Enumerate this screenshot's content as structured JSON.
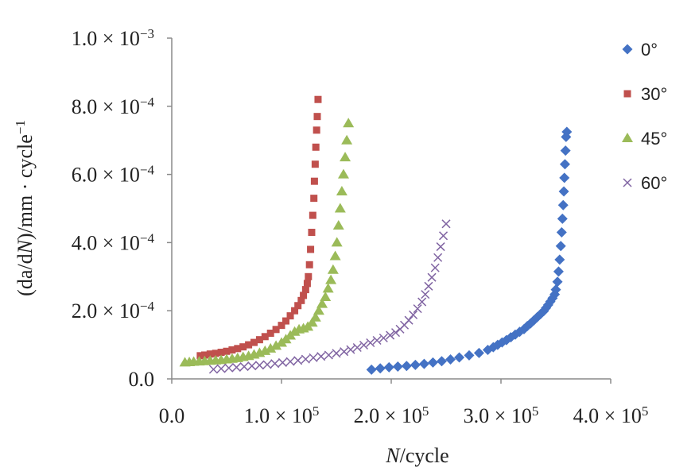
{
  "chart_data": {
    "type": "scatter",
    "xlabel": {
      "italic": "N",
      "rest": "/cycle"
    },
    "ylabel": {
      "prefix": "(da/d",
      "italic": "N",
      "suffix": ")/mm · cycle",
      "sup": "−1"
    },
    "xlim": [
      0,
      400000
    ],
    "ylim": [
      0,
      0.001
    ],
    "x_ticks": [
      {
        "value": 0,
        "mant": "0.0",
        "exp": ""
      },
      {
        "value": 100000,
        "mant": "1.0",
        "exp": "5"
      },
      {
        "value": 200000,
        "mant": "2.0",
        "exp": "5"
      },
      {
        "value": 300000,
        "mant": "3.0",
        "exp": "5"
      },
      {
        "value": 400000,
        "mant": "4.0",
        "exp": "5"
      }
    ],
    "y_ticks": [
      {
        "value": 0,
        "mant": "0.0",
        "exp": ""
      },
      {
        "value": 0.0002,
        "mant": "2.0",
        "exp": "−4"
      },
      {
        "value": 0.0004,
        "mant": "4.0",
        "exp": "−4"
      },
      {
        "value": 0.0006,
        "mant": "6.0",
        "exp": "−4"
      },
      {
        "value": 0.0008,
        "mant": "8.0",
        "exp": "−4"
      },
      {
        "value": 0.001,
        "mant": "1.0",
        "exp": "−3"
      }
    ],
    "grid": false,
    "legend_position": "top-right",
    "series": [
      {
        "name": "0°",
        "marker": "diamond",
        "color": "#4472c4",
        "points": [
          [
            182000,
            2.7e-05
          ],
          [
            190000,
            3.1e-05
          ],
          [
            198000,
            3.4e-05
          ],
          [
            206000,
            3.6e-05
          ],
          [
            214000,
            3.8e-05
          ],
          [
            222000,
            4.1e-05
          ],
          [
            230000,
            4.4e-05
          ],
          [
            238000,
            4.8e-05
          ],
          [
            246000,
            5.2e-05
          ],
          [
            254000,
            5.7e-05
          ],
          [
            262000,
            6.3e-05
          ],
          [
            271000,
            6.9e-05
          ],
          [
            280000,
            7.6e-05
          ],
          [
            288000,
            8.5e-05
          ],
          [
            293000,
            9.3e-05
          ],
          [
            297000,
            0.0001
          ],
          [
            301000,
            0.000107
          ],
          [
            305000,
            0.000114
          ],
          [
            309000,
            0.000122
          ],
          [
            313000,
            0.00013
          ],
          [
            317000,
            0.000138
          ],
          [
            321000,
            0.000146
          ],
          [
            324000,
            0.000155
          ],
          [
            327000,
            0.000163
          ],
          [
            330000,
            0.000172
          ],
          [
            333000,
            0.000181
          ],
          [
            336000,
            0.00019
          ],
          [
            339000,
            0.000199
          ],
          [
            341000,
            0.000208
          ],
          [
            343000,
            0.000217
          ],
          [
            345000,
            0.000227
          ],
          [
            347000,
            0.000237
          ],
          [
            349000,
            0.000248
          ],
          [
            350000,
            0.000262
          ],
          [
            351500,
            0.000285
          ],
          [
            352500,
            0.000315
          ],
          [
            353500,
            0.00035
          ],
          [
            354500,
            0.00039
          ],
          [
            355300,
            0.00043
          ],
          [
            356000,
            0.00047
          ],
          [
            356700,
            0.00051
          ],
          [
            357300,
            0.00055
          ],
          [
            357800,
            0.00059
          ],
          [
            358300,
            0.00063
          ],
          [
            358800,
            0.00067
          ],
          [
            359300,
            0.00071
          ],
          [
            360000,
            0.000725
          ]
        ]
      },
      {
        "name": "30°",
        "marker": "square",
        "color": "#c0504d",
        "points": [
          [
            26000,
            6.8e-05
          ],
          [
            30000,
            7e-05
          ],
          [
            35000,
            7.3e-05
          ],
          [
            40000,
            7.5e-05
          ],
          [
            45000,
            7.8e-05
          ],
          [
            50000,
            8.1e-05
          ],
          [
            55000,
            8.5e-05
          ],
          [
            60000,
            8.9e-05
          ],
          [
            65000,
            9.4e-05
          ],
          [
            70000,
            0.0001
          ],
          [
            75000,
            0.000107
          ],
          [
            80000,
            0.000115
          ],
          [
            85000,
            0.000124
          ],
          [
            90000,
            0.000134
          ],
          [
            95000,
            0.000145
          ],
          [
            100000,
            0.000157
          ],
          [
            104000,
            0.00017
          ],
          [
            108000,
            0.000185
          ],
          [
            112000,
            0.0002
          ],
          [
            115000,
            0.000215
          ],
          [
            118000,
            0.00023
          ],
          [
            120000,
            0.000245
          ],
          [
            122000,
            0.000262
          ],
          [
            123500,
            0.00028
          ],
          [
            124500,
            0.0003
          ],
          [
            125500,
            0.000335
          ],
          [
            126500,
            0.00038
          ],
          [
            127500,
            0.00043
          ],
          [
            128500,
            0.00048
          ],
          [
            129500,
            0.00053
          ],
          [
            130000,
            0.00058
          ],
          [
            130700,
            0.00063
          ],
          [
            131300,
            0.00068
          ],
          [
            132000,
            0.00073
          ],
          [
            132600,
            0.00077
          ],
          [
            133300,
            0.00082
          ]
        ]
      },
      {
        "name": "45°",
        "marker": "triangle",
        "color": "#9bbb59",
        "points": [
          [
            12000,
            4.8e-05
          ],
          [
            16000,
            4.9e-05
          ],
          [
            20000,
            5e-05
          ],
          [
            25000,
            5.1e-05
          ],
          [
            30000,
            5.2e-05
          ],
          [
            35000,
            5.3e-05
          ],
          [
            40000,
            5.4e-05
          ],
          [
            45000,
            5.5e-05
          ],
          [
            50000,
            5.7e-05
          ],
          [
            55000,
            5.9e-05
          ],
          [
            60000,
            6.1e-05
          ],
          [
            65000,
            6.4e-05
          ],
          [
            70000,
            6.7e-05
          ],
          [
            75000,
            7.1e-05
          ],
          [
            80000,
            7.6e-05
          ],
          [
            85000,
            8.2e-05
          ],
          [
            90000,
            8.9e-05
          ],
          [
            95000,
            9.7e-05
          ],
          [
            100000,
            0.000106
          ],
          [
            104000,
            0.000116
          ],
          [
            108000,
            0.000127
          ],
          [
            112000,
            0.000138
          ],
          [
            116000,
            0.000145
          ],
          [
            120000,
            0.000148
          ],
          [
            124000,
            0.000153
          ],
          [
            128000,
            0.000165
          ],
          [
            131000,
            0.00018
          ],
          [
            134000,
            0.0002
          ],
          [
            137000,
            0.00022
          ],
          [
            140000,
            0.00024
          ],
          [
            142500,
            0.000265
          ],
          [
            145000,
            0.00029
          ],
          [
            147000,
            0.00032
          ],
          [
            149000,
            0.00036
          ],
          [
            150500,
            0.0004
          ],
          [
            152000,
            0.00045
          ],
          [
            153500,
            0.0005
          ],
          [
            155000,
            0.00055
          ],
          [
            156500,
            0.0006
          ],
          [
            158000,
            0.00065
          ],
          [
            159500,
            0.0007
          ],
          [
            161000,
            0.00075
          ]
        ]
      },
      {
        "name": "60°",
        "marker": "x",
        "color": "#8064a2",
        "points": [
          [
            38000,
            2.8e-05
          ],
          [
            45000,
            3e-05
          ],
          [
            52000,
            3.2e-05
          ],
          [
            59000,
            3.4e-05
          ],
          [
            66000,
            3.6e-05
          ],
          [
            73000,
            3.8e-05
          ],
          [
            80000,
            4e-05
          ],
          [
            87000,
            4.2e-05
          ],
          [
            94000,
            4.5e-05
          ],
          [
            101000,
            4.8e-05
          ],
          [
            108000,
            5.1e-05
          ],
          [
            115000,
            5.4e-05
          ],
          [
            122000,
            5.8e-05
          ],
          [
            129000,
            6.2e-05
          ],
          [
            136000,
            6.6e-05
          ],
          [
            143000,
            7e-05
          ],
          [
            150000,
            7.5e-05
          ],
          [
            157000,
            8e-05
          ],
          [
            163000,
            8.6e-05
          ],
          [
            169000,
            9.2e-05
          ],
          [
            175000,
            9.9e-05
          ],
          [
            181000,
            0.000106
          ],
          [
            187000,
            0.000113
          ],
          [
            193000,
            0.00012
          ],
          [
            199000,
            0.000128
          ],
          [
            204000,
            0.000136
          ],
          [
            208000,
            0.000146
          ],
          [
            212000,
            0.000158
          ],
          [
            216000,
            0.000172
          ],
          [
            220000,
            0.000188
          ],
          [
            224000,
            0.000206
          ],
          [
            228000,
            0.000226
          ],
          [
            231000,
            0.000248
          ],
          [
            234000,
            0.000272
          ],
          [
            237000,
            0.000298
          ],
          [
            240000,
            0.000326
          ],
          [
            242500,
            0.000356
          ],
          [
            245000,
            0.000388
          ],
          [
            247500,
            0.00042
          ],
          [
            250000,
            0.000455
          ]
        ]
      }
    ]
  }
}
